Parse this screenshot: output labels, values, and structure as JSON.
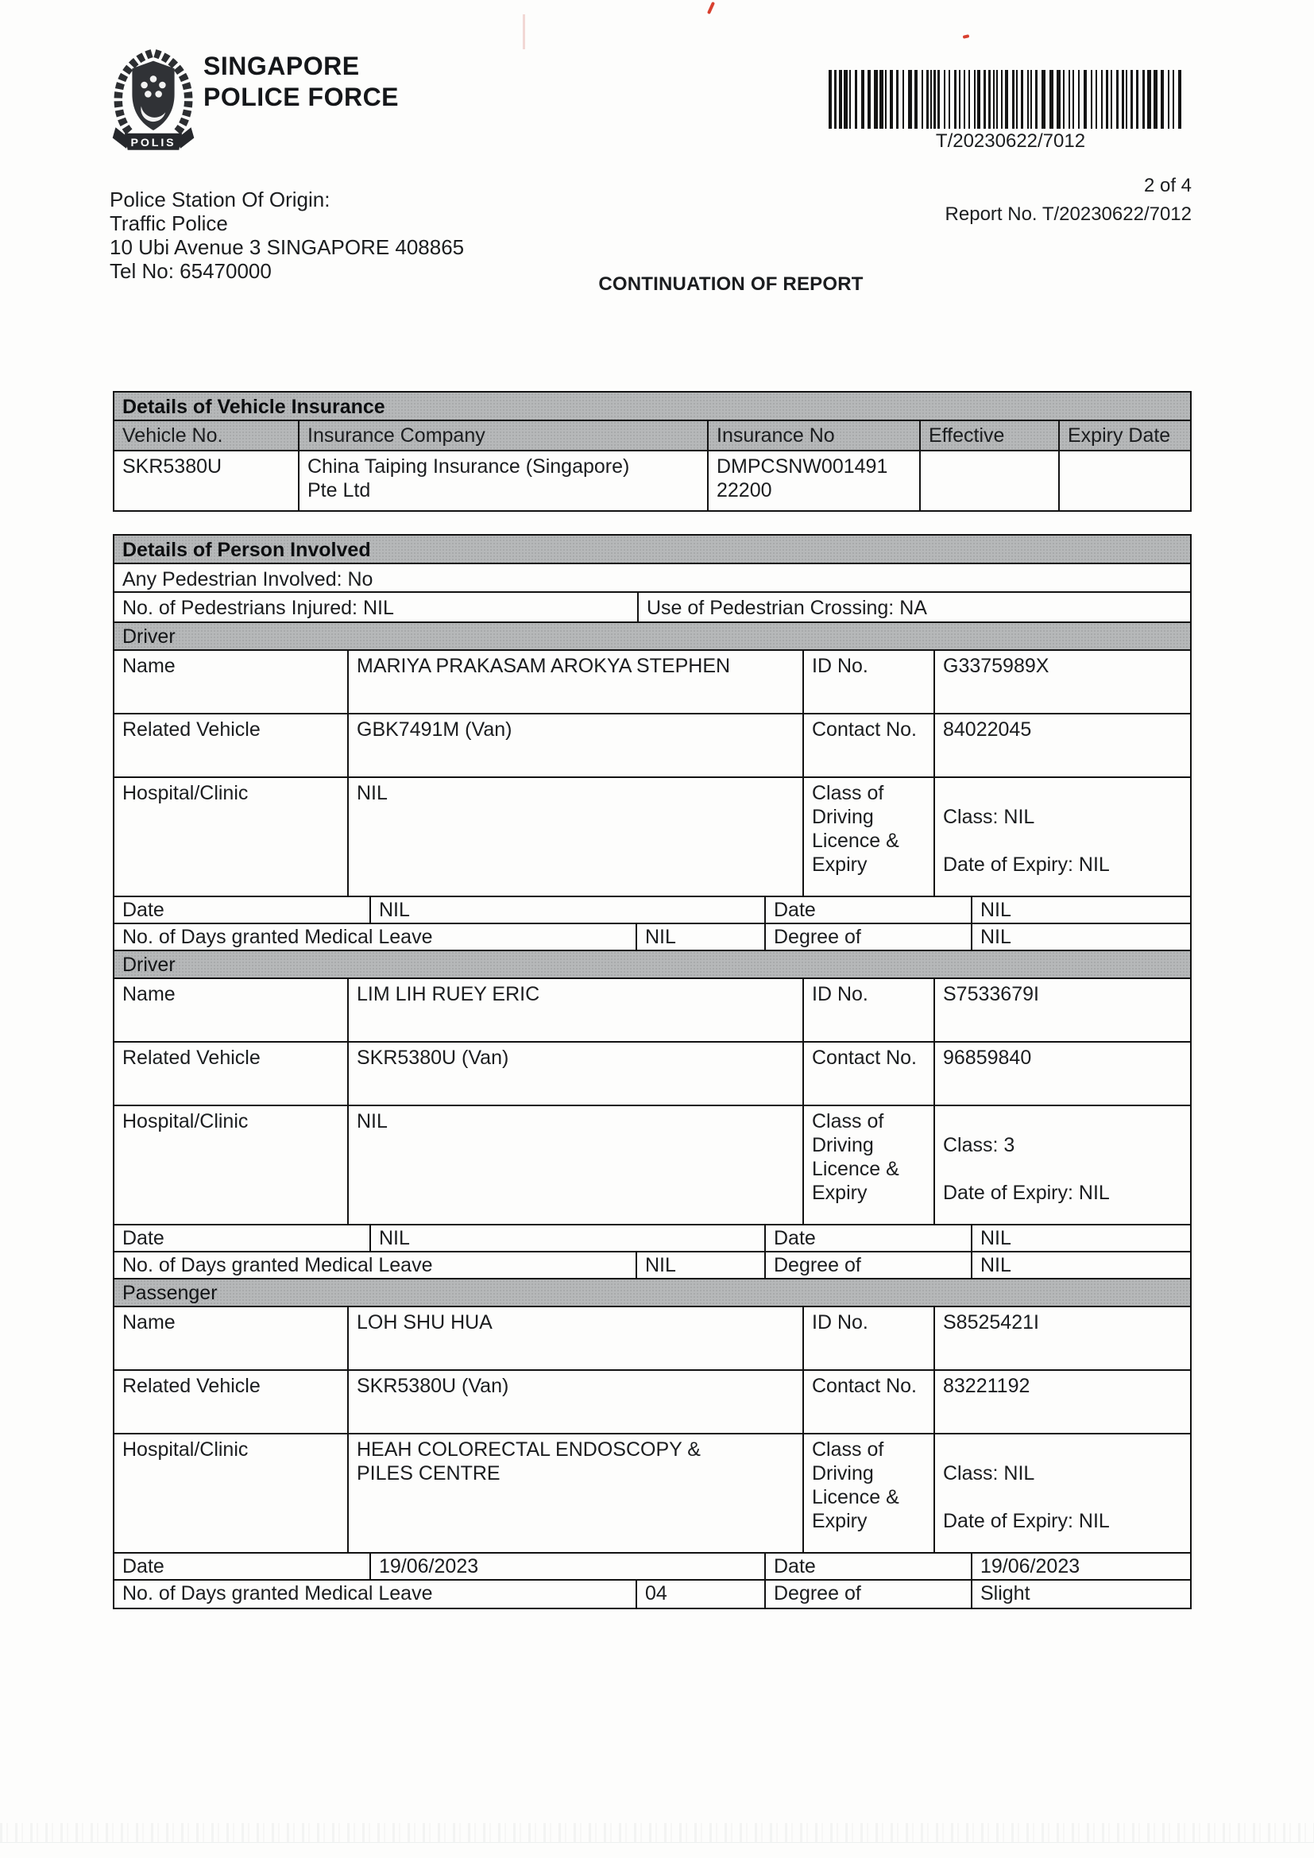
{
  "colors": {
    "header_gray": "#b6b8b9",
    "ink": "#1b1d1f",
    "red_mark": "#d8402f"
  },
  "header": {
    "org_line1": "SINGAPORE",
    "org_line2": "POLICE FORCE",
    "crest_banner": "POLIS",
    "barcode_value": "T/20230622/7012",
    "station_label": "Police Station Of Origin:",
    "station_name": "Traffic Police",
    "station_address": "10 Ubi Avenue 3 SINGAPORE 408865",
    "station_tel": "Tel No: 65470000",
    "page_info": "2 of 4",
    "report_no_line": "Report No. T/20230622/7012",
    "continuation_title": "CONTINUATION OF REPORT"
  },
  "insurance_table": {
    "title": "Details of Vehicle Insurance",
    "columns": [
      "Vehicle No.",
      "Insurance Company",
      "Insurance No",
      "Effective",
      "Expiry Date"
    ],
    "rows": [
      {
        "vehicle_no": "SKR5380U",
        "company": "China Taiping Insurance (Singapore)\nPte Ltd",
        "insurance_no": "DMPCSNW001491\n22200",
        "effective": "",
        "expiry": ""
      }
    ]
  },
  "person_table": {
    "title": "Details of Person Involved",
    "any_pedestrian": "Any Pedestrian Involved: No",
    "pedestrians_injured": "No. of Pedestrians Injured: NIL",
    "pedestrian_crossing": "Use of Pedestrian Crossing: NA",
    "labels": {
      "name": "Name",
      "id_no": "ID No.",
      "related_vehicle": "Related Vehicle",
      "contact_no": "Contact No.",
      "hospital": "Hospital/Clinic",
      "licence": "Class of Driving Licence & Expiry",
      "date": "Date",
      "med_leave": "No. of Days granted Medical Leave",
      "degree": "Degree of"
    },
    "blocks": [
      {
        "role": "Driver",
        "name": "MARIYA PRAKASAM AROKYA STEPHEN",
        "id_no": "G3375989X",
        "related_vehicle": "GBK7491M (Van)",
        "contact_no": "84022045",
        "hospital": "NIL",
        "licence_class": "Class: NIL",
        "licence_expiry": "Date of Expiry: NIL",
        "date1": "NIL",
        "date2": "NIL",
        "med_leave_days": "NIL",
        "degree": "NIL"
      },
      {
        "role": "Driver",
        "name": "LIM LIH RUEY ERIC",
        "id_no": "S7533679I",
        "related_vehicle": "SKR5380U (Van)",
        "contact_no": "96859840",
        "hospital": "NIL",
        "licence_class": "Class: 3",
        "licence_expiry": "Date of Expiry: NIL",
        "date1": "NIL",
        "date2": "NIL",
        "med_leave_days": "NIL",
        "degree": "NIL"
      },
      {
        "role": "Passenger",
        "name": "LOH SHU HUA",
        "id_no": "S8525421I",
        "related_vehicle": "SKR5380U (Van)",
        "contact_no": "83221192",
        "hospital": "HEAH COLORECTAL ENDOSCOPY &\nPILES CENTRE",
        "licence_class": "Class: NIL",
        "licence_expiry": "Date of Expiry: NIL",
        "date1": "19/06/2023",
        "date2": "19/06/2023",
        "med_leave_days": "04",
        "degree": "Slight"
      }
    ]
  }
}
